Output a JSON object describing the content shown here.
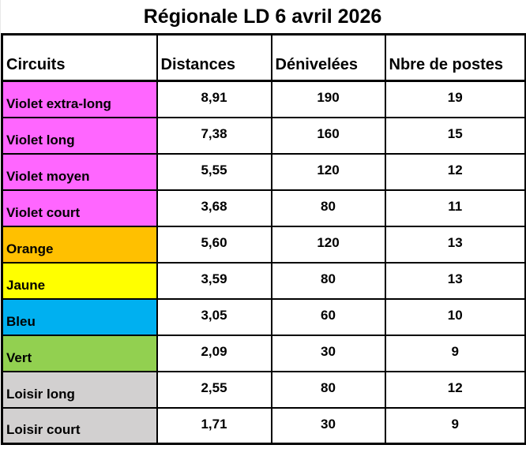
{
  "title": "Régionale LD 6 avril 2026",
  "table": {
    "columns": {
      "circuits": "Circuits",
      "distances": "Distances",
      "denivelees": "Dénivelées",
      "postes": "Nbre de postes"
    },
    "row_colors": {
      "violet": "#FF66FF",
      "orange": "#FFC000",
      "jaune": "#FFFF00",
      "bleu": "#00B0F0",
      "vert": "#92D050",
      "loisir_gris": "#D2D0D0"
    },
    "rows": [
      {
        "name": "Violet extra-long",
        "color": "#FF66FF",
        "distance": "8,91",
        "denivelee": "190",
        "postes": "19"
      },
      {
        "name": "Violet long",
        "color": "#FF66FF",
        "distance": "7,38",
        "denivelee": "160",
        "postes": "15"
      },
      {
        "name": "Violet moyen",
        "color": "#FF66FF",
        "distance": "5,55",
        "denivelee": "120",
        "postes": "12"
      },
      {
        "name": "Violet court",
        "color": "#FF66FF",
        "distance": "3,68",
        "denivelee": "80",
        "postes": "11"
      },
      {
        "name": "Orange",
        "color": "#FFC000",
        "distance": "5,60",
        "denivelee": "120",
        "postes": "13"
      },
      {
        "name": "Jaune",
        "color": "#FFFF00",
        "distance": "3,59",
        "denivelee": "80",
        "postes": "13"
      },
      {
        "name": "Bleu",
        "color": "#00B0F0",
        "distance": "3,05",
        "denivelee": "60",
        "postes": "10"
      },
      {
        "name": "Vert",
        "color": "#92D050",
        "distance": "2,09",
        "denivelee": "30",
        "postes": "9"
      },
      {
        "name": "Loisir long",
        "color": "#D2D0D0",
        "distance": "2,55",
        "denivelee": "80",
        "postes": "12"
      },
      {
        "name": "Loisir court",
        "color": "#D2D0D0",
        "distance": "1,71",
        "denivelee": "30",
        "postes": "9"
      }
    ]
  }
}
